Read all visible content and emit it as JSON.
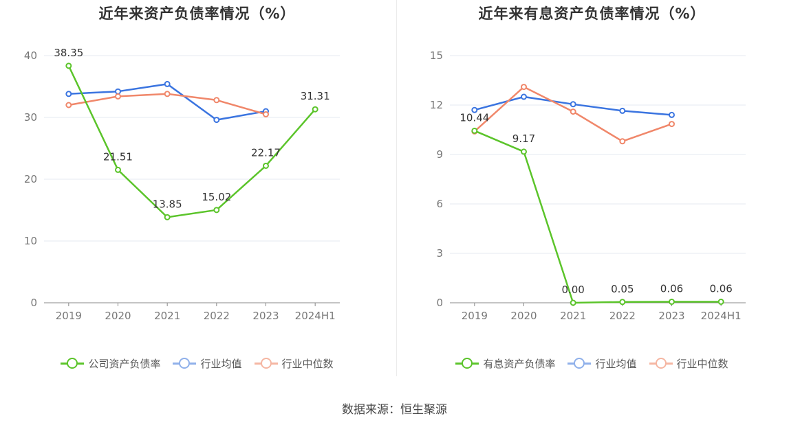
{
  "footer": {
    "source_text": "数据来源：恒生聚源"
  },
  "chart_data": [
    {
      "type": "line",
      "title": "近年来资产负债率情况（%）",
      "categories": [
        "2019",
        "2020",
        "2021",
        "2022",
        "2023",
        "2024H1"
      ],
      "ylim": [
        0,
        40
      ],
      "yticks": [
        "0",
        "10",
        "20",
        "30",
        "40"
      ],
      "grid": true,
      "legend_position": "bottom",
      "series": [
        {
          "name": "公司资产负债率",
          "color": "#5bc42a",
          "values": [
            38.35,
            21.51,
            13.85,
            15.02,
            22.17,
            31.31
          ],
          "labels": [
            "38.35",
            "21.51",
            "13.85",
            "15.02",
            "22.17",
            "31.31"
          ]
        },
        {
          "name": "行业均值",
          "color": "#3a74e0",
          "values": [
            33.8,
            34.2,
            35.4,
            29.6,
            31.0,
            null
          ]
        },
        {
          "name": "行业中位数",
          "color": "#f0876a",
          "values": [
            32.0,
            33.4,
            33.8,
            32.8,
            30.5,
            null
          ]
        }
      ]
    },
    {
      "type": "line",
      "title": "近年来有息资产负债率情况（%）",
      "categories": [
        "2019",
        "2020",
        "2021",
        "2022",
        "2023",
        "2024H1"
      ],
      "ylim": [
        0,
        15
      ],
      "yticks": [
        "0",
        "3",
        "6",
        "9",
        "12",
        "15"
      ],
      "grid": true,
      "legend_position": "bottom",
      "series": [
        {
          "name": "有息资产负债率",
          "color": "#5bc42a",
          "values": [
            10.44,
            9.17,
            0.0,
            0.05,
            0.06,
            0.06
          ],
          "labels": [
            "10.44",
            "9.17",
            "0.00",
            "0.05",
            "0.06",
            "0.06"
          ]
        },
        {
          "name": "行业均值",
          "color": "#3a74e0",
          "values": [
            11.7,
            12.5,
            12.05,
            11.65,
            11.4,
            null
          ]
        },
        {
          "name": "行业中位数",
          "color": "#f0876a",
          "values": [
            10.4,
            13.1,
            11.6,
            9.8,
            10.85,
            null
          ]
        }
      ]
    }
  ]
}
